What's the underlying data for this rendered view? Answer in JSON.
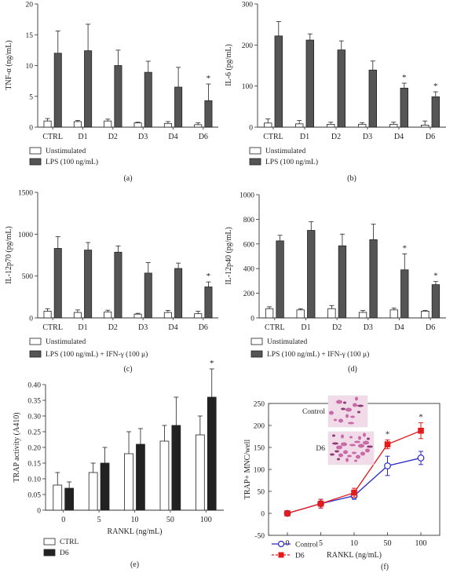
{
  "chart_data": [
    {
      "panel": "(a)",
      "type": "bar",
      "ylabel": "TNF-α (ng/mL)",
      "ylim": [
        0,
        20
      ],
      "yticks": [
        0,
        5,
        10,
        15,
        20
      ],
      "categories": [
        "CTRL",
        "D1",
        "D2",
        "D3",
        "D4",
        "D6"
      ],
      "series": [
        {
          "name": "Unstimulated",
          "values": [
            1.0,
            0.9,
            1.0,
            0.7,
            0.6,
            0.4
          ],
          "errors": [
            0.4,
            0.2,
            0.3,
            0.1,
            0.3,
            0.3
          ],
          "color": "#ffffff"
        },
        {
          "name": "LPS (100 ng/mL)",
          "values": [
            12.0,
            12.4,
            10.0,
            8.9,
            6.5,
            4.3
          ],
          "errors": [
            3.6,
            4.3,
            2.5,
            1.8,
            3.2,
            2.7
          ],
          "color": "#555555"
        }
      ],
      "significance": [
        {
          "category": "D6",
          "series": 1,
          "label": "*"
        }
      ]
    },
    {
      "panel": "(b)",
      "type": "bar",
      "ylabel": "IL-6 (pg/mL)",
      "ylim": [
        0,
        300
      ],
      "yticks": [
        0,
        100,
        200,
        300
      ],
      "categories": [
        "CTRL",
        "D1",
        "D2",
        "D3",
        "D4",
        "D6"
      ],
      "series": [
        {
          "name": "Unstimulated",
          "values": [
            10,
            8,
            7,
            7,
            7,
            5
          ],
          "errors": [
            10,
            8,
            5,
            4,
            5,
            10
          ],
          "color": "#ffffff"
        },
        {
          "name": "LPS (100 ng/mL)",
          "values": [
            222,
            212,
            188,
            139,
            95,
            74
          ],
          "errors": [
            35,
            15,
            22,
            22,
            12,
            12
          ],
          "color": "#555555"
        }
      ],
      "significance": [
        {
          "category": "D4",
          "series": 1,
          "label": "*"
        },
        {
          "category": "D6",
          "series": 1,
          "label": "*"
        }
      ]
    },
    {
      "panel": "(c)",
      "type": "bar",
      "ylabel": "IL-12p70 (pg/mL)",
      "ylim": [
        0,
        1500
      ],
      "yticks": [
        0,
        500,
        1000,
        1500
      ],
      "categories": [
        "CTRL",
        "D1",
        "D2",
        "D3",
        "D4",
        "D6"
      ],
      "series": [
        {
          "name": "Unstimulated",
          "values": [
            80,
            65,
            72,
            45,
            65,
            50
          ],
          "errors": [
            30,
            30,
            20,
            10,
            25,
            30
          ],
          "color": "#ffffff"
        },
        {
          "name": "LPS (100 ng/mL) + IFN-γ (100 μ)",
          "values": [
            830,
            810,
            785,
            535,
            590,
            370
          ],
          "errors": [
            140,
            90,
            75,
            125,
            65,
            60
          ],
          "color": "#555555"
        }
      ],
      "significance": [
        {
          "category": "D6",
          "series": 1,
          "label": "*"
        }
      ]
    },
    {
      "panel": "(d)",
      "type": "bar",
      "ylabel": "IL-12p40 (pg/mL)",
      "ylim": [
        0,
        1000
      ],
      "yticks": [
        0,
        200,
        400,
        600,
        800,
        1000
      ],
      "categories": [
        "CTRL",
        "D1",
        "D2",
        "D3",
        "D4",
        "D6"
      ],
      "series": [
        {
          "name": "Unstimulated",
          "values": [
            75,
            65,
            75,
            45,
            65,
            55
          ],
          "errors": [
            15,
            10,
            25,
            15,
            15,
            5
          ],
          "color": "#ffffff"
        },
        {
          "name": "LPS (100 ng/mL) + IFN-γ (100 μ)",
          "values": [
            625,
            710,
            585,
            635,
            390,
            270
          ],
          "errors": [
            45,
            70,
            95,
            125,
            130,
            25
          ],
          "color": "#555555"
        }
      ],
      "significance": [
        {
          "category": "D4",
          "series": 1,
          "label": "*"
        },
        {
          "category": "D6",
          "series": 1,
          "label": "*"
        }
      ]
    },
    {
      "panel": "(e)",
      "type": "bar",
      "xlabel": "RANKL (ng/mL)",
      "ylabel": "TRAP activity (A410)",
      "ylim": [
        0,
        0.4
      ],
      "yticks": [
        "0",
        "0.05",
        "0.10",
        "0.15",
        "0.20",
        "0.25",
        "0.30",
        "0.35",
        "0.40"
      ],
      "categories": [
        "0",
        "5",
        "10",
        "50",
        "100"
      ],
      "series": [
        {
          "name": "CTRL",
          "values": [
            0.08,
            0.12,
            0.18,
            0.22,
            0.24
          ],
          "errors": [
            0.04,
            0.03,
            0.07,
            0.05,
            0.06
          ],
          "color": "#ffffff"
        },
        {
          "name": "D6",
          "values": [
            0.07,
            0.15,
            0.21,
            0.27,
            0.36
          ],
          "errors": [
            0.02,
            0.05,
            0.05,
            0.09,
            0.09
          ],
          "color": "#222222"
        }
      ],
      "significance": [
        {
          "category": "100",
          "series": 1,
          "label": "*"
        }
      ]
    },
    {
      "panel": "(f)",
      "type": "line",
      "xlabel": "RANKL (ng/mL)",
      "ylabel": "TRAP+ MNC/well",
      "ylim": [
        -50,
        250
      ],
      "yticks": [
        -50,
        0,
        50,
        100,
        150,
        200,
        250
      ],
      "categories": [
        "0",
        "5",
        "10",
        "50",
        "100"
      ],
      "series": [
        {
          "name": "Control",
          "values": [
            0,
            22,
            40,
            108,
            126
          ],
          "errors": [
            3,
            10,
            8,
            22,
            15
          ],
          "color": "#2b2bc4",
          "marker": "circle-open"
        },
        {
          "name": "D6",
          "values": [
            0,
            22,
            47,
            157,
            188
          ],
          "errors": [
            3,
            10,
            10,
            10,
            18
          ],
          "color": "#e41b1b",
          "marker": "square-filled"
        }
      ],
      "significance": [
        {
          "category": "50",
          "series": 1,
          "label": "*"
        },
        {
          "category": "100",
          "series": 1,
          "label": "*"
        }
      ],
      "insets": [
        "Control",
        "D6"
      ]
    }
  ]
}
